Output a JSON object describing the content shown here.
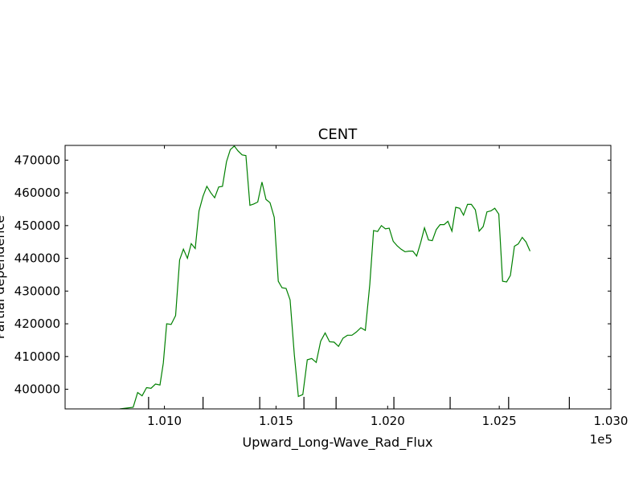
{
  "chart_data": {
    "type": "line",
    "title": "CENT",
    "xlabel": "Upward_Long-Wave_Rad_Flux",
    "ylabel": "Partial dependence",
    "x_offset_text": "1e5",
    "xlim": [
      100555,
      103000
    ],
    "ylim": [
      394000,
      474500
    ],
    "grid": false,
    "legend": "none",
    "x_ticks": [
      {
        "value": 101000,
        "label": "1.010"
      },
      {
        "value": 101500,
        "label": "1.015"
      },
      {
        "value": 102000,
        "label": "1.020"
      },
      {
        "value": 102500,
        "label": "1.025"
      },
      {
        "value": 103000,
        "label": "1.030"
      }
    ],
    "y_ticks": [
      {
        "value": 400000,
        "label": "400000"
      },
      {
        "value": 410000,
        "label": "410000"
      },
      {
        "value": 420000,
        "label": "420000"
      },
      {
        "value": 430000,
        "label": "430000"
      },
      {
        "value": 440000,
        "label": "440000"
      },
      {
        "value": 450000,
        "label": "450000"
      },
      {
        "value": 460000,
        "label": "460000"
      },
      {
        "value": 470000,
        "label": "470000"
      }
    ],
    "deciles": [
      100929,
      101173,
      101427,
      101625,
      101769,
      102028,
      102280,
      102542,
      102814
    ],
    "series": [
      {
        "color": "#008000",
        "points": [
          [
            100800,
            394000
          ],
          [
            100860,
            394500
          ],
          [
            100880,
            399000
          ],
          [
            100900,
            398000
          ],
          [
            100920,
            400500
          ],
          [
            100940,
            400300
          ],
          [
            100960,
            401600
          ],
          [
            100980,
            401300
          ],
          [
            100995,
            408000
          ],
          [
            101010,
            420000
          ],
          [
            101030,
            419800
          ],
          [
            101050,
            422500
          ],
          [
            101068,
            439500
          ],
          [
            101085,
            442800
          ],
          [
            101103,
            440000
          ],
          [
            101120,
            444500
          ],
          [
            101138,
            443000
          ],
          [
            101155,
            454500
          ],
          [
            101173,
            459000
          ],
          [
            101190,
            462000
          ],
          [
            101208,
            460000
          ],
          [
            101225,
            458500
          ],
          [
            101243,
            461800
          ],
          [
            101260,
            462000
          ],
          [
            101278,
            469500
          ],
          [
            101295,
            473200
          ],
          [
            101313,
            474300
          ],
          [
            101330,
            472800
          ],
          [
            101348,
            471600
          ],
          [
            101365,
            471400
          ],
          [
            101383,
            456200
          ],
          [
            101400,
            456600
          ],
          [
            101418,
            457200
          ],
          [
            101437,
            463300
          ],
          [
            101455,
            458000
          ],
          [
            101473,
            457000
          ],
          [
            101492,
            452500
          ],
          [
            101510,
            433000
          ],
          [
            101527,
            431000
          ],
          [
            101545,
            430800
          ],
          [
            101563,
            427300
          ],
          [
            101582,
            410500
          ],
          [
            101600,
            397800
          ],
          [
            101620,
            398400
          ],
          [
            101640,
            409000
          ],
          [
            101660,
            409400
          ],
          [
            101680,
            408200
          ],
          [
            101700,
            414700
          ],
          [
            101720,
            417200
          ],
          [
            101740,
            414500
          ],
          [
            101760,
            414400
          ],
          [
            101780,
            413100
          ],
          [
            101800,
            415600
          ],
          [
            101820,
            416500
          ],
          [
            101840,
            416500
          ],
          [
            101860,
            417500
          ],
          [
            101880,
            418800
          ],
          [
            101900,
            418000
          ],
          [
            101920,
            432000
          ],
          [
            101937,
            448500
          ],
          [
            101955,
            448200
          ],
          [
            101972,
            450000
          ],
          [
            101990,
            449000
          ],
          [
            102007,
            449200
          ],
          [
            102025,
            445200
          ],
          [
            102043,
            443800
          ],
          [
            102060,
            442800
          ],
          [
            102078,
            442000
          ],
          [
            102095,
            442200
          ],
          [
            102113,
            442200
          ],
          [
            102130,
            440700
          ],
          [
            102148,
            444800
          ],
          [
            102165,
            449300
          ],
          [
            102183,
            445600
          ],
          [
            102200,
            445400
          ],
          [
            102218,
            448800
          ],
          [
            102235,
            450300
          ],
          [
            102253,
            450300
          ],
          [
            102270,
            451300
          ],
          [
            102288,
            448300
          ],
          [
            102305,
            455600
          ],
          [
            102323,
            455300
          ],
          [
            102340,
            453200
          ],
          [
            102358,
            456500
          ],
          [
            102375,
            456500
          ],
          [
            102393,
            454800
          ],
          [
            102410,
            448300
          ],
          [
            102428,
            449700
          ],
          [
            102445,
            454200
          ],
          [
            102463,
            454500
          ],
          [
            102480,
            455300
          ],
          [
            102498,
            453500
          ],
          [
            102515,
            433000
          ],
          [
            102533,
            432800
          ],
          [
            102550,
            434800
          ],
          [
            102568,
            443700
          ],
          [
            102585,
            444400
          ],
          [
            102603,
            446400
          ],
          [
            102620,
            445000
          ],
          [
            102638,
            442200
          ]
        ]
      }
    ]
  }
}
